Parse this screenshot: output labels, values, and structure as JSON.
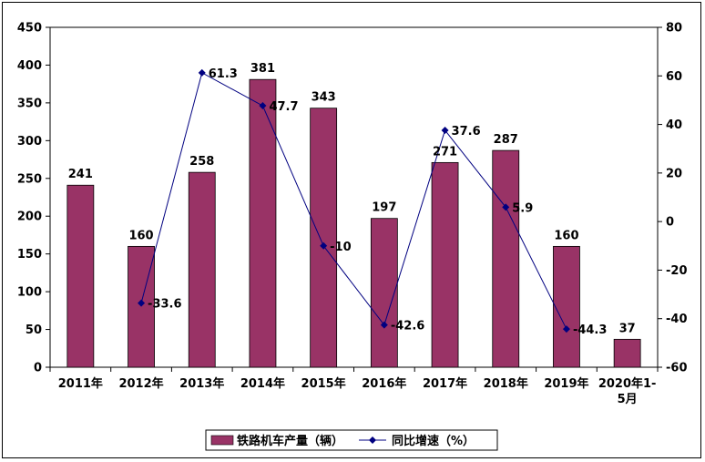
{
  "chart_data": {
    "type": "bar",
    "categories": [
      "2011年",
      "2012年",
      "2013年",
      "2014年",
      "2015年",
      "2016年",
      "2017年",
      "2018年",
      "2019年",
      "2020年1-5月"
    ],
    "category_lines": [
      [
        "2011年"
      ],
      [
        "2012年"
      ],
      [
        "2013年"
      ],
      [
        "2014年"
      ],
      [
        "2015年"
      ],
      [
        "2016年"
      ],
      [
        "2017年"
      ],
      [
        "2018年"
      ],
      [
        "2019年"
      ],
      [
        "2020年1-",
        "5月"
      ]
    ],
    "series": [
      {
        "name": "铁路机车产量（辆）",
        "type": "bar",
        "axis": "left",
        "values": [
          241,
          160,
          258,
          381,
          343,
          197,
          271,
          287,
          160,
          37
        ],
        "labels": [
          "241",
          "160",
          "258",
          "381",
          "343",
          "197",
          "271",
          "287",
          "160",
          "37"
        ],
        "color": "#993366"
      },
      {
        "name": "同比增速（%）",
        "type": "line",
        "axis": "right",
        "values": [
          null,
          -33.6,
          61.3,
          47.7,
          -10,
          -42.6,
          37.6,
          5.9,
          -44.3,
          null
        ],
        "labels": [
          "",
          "-33.6",
          "61.3",
          "47.7",
          "-10",
          "-42.6",
          "37.6",
          "5.9",
          "-44.3",
          ""
        ],
        "color": "#000080"
      }
    ],
    "y_left": {
      "min": 0,
      "max": 450,
      "step": 50,
      "ticks": [
        "0",
        "50",
        "100",
        "150",
        "200",
        "250",
        "300",
        "350",
        "400",
        "450"
      ]
    },
    "y_right": {
      "min": -60,
      "max": 80,
      "step": 20,
      "ticks": [
        "-60",
        "-40",
        "-20",
        "0",
        "20",
        "40",
        "60",
        "80"
      ]
    },
    "grid": false,
    "legend": "bottom"
  }
}
